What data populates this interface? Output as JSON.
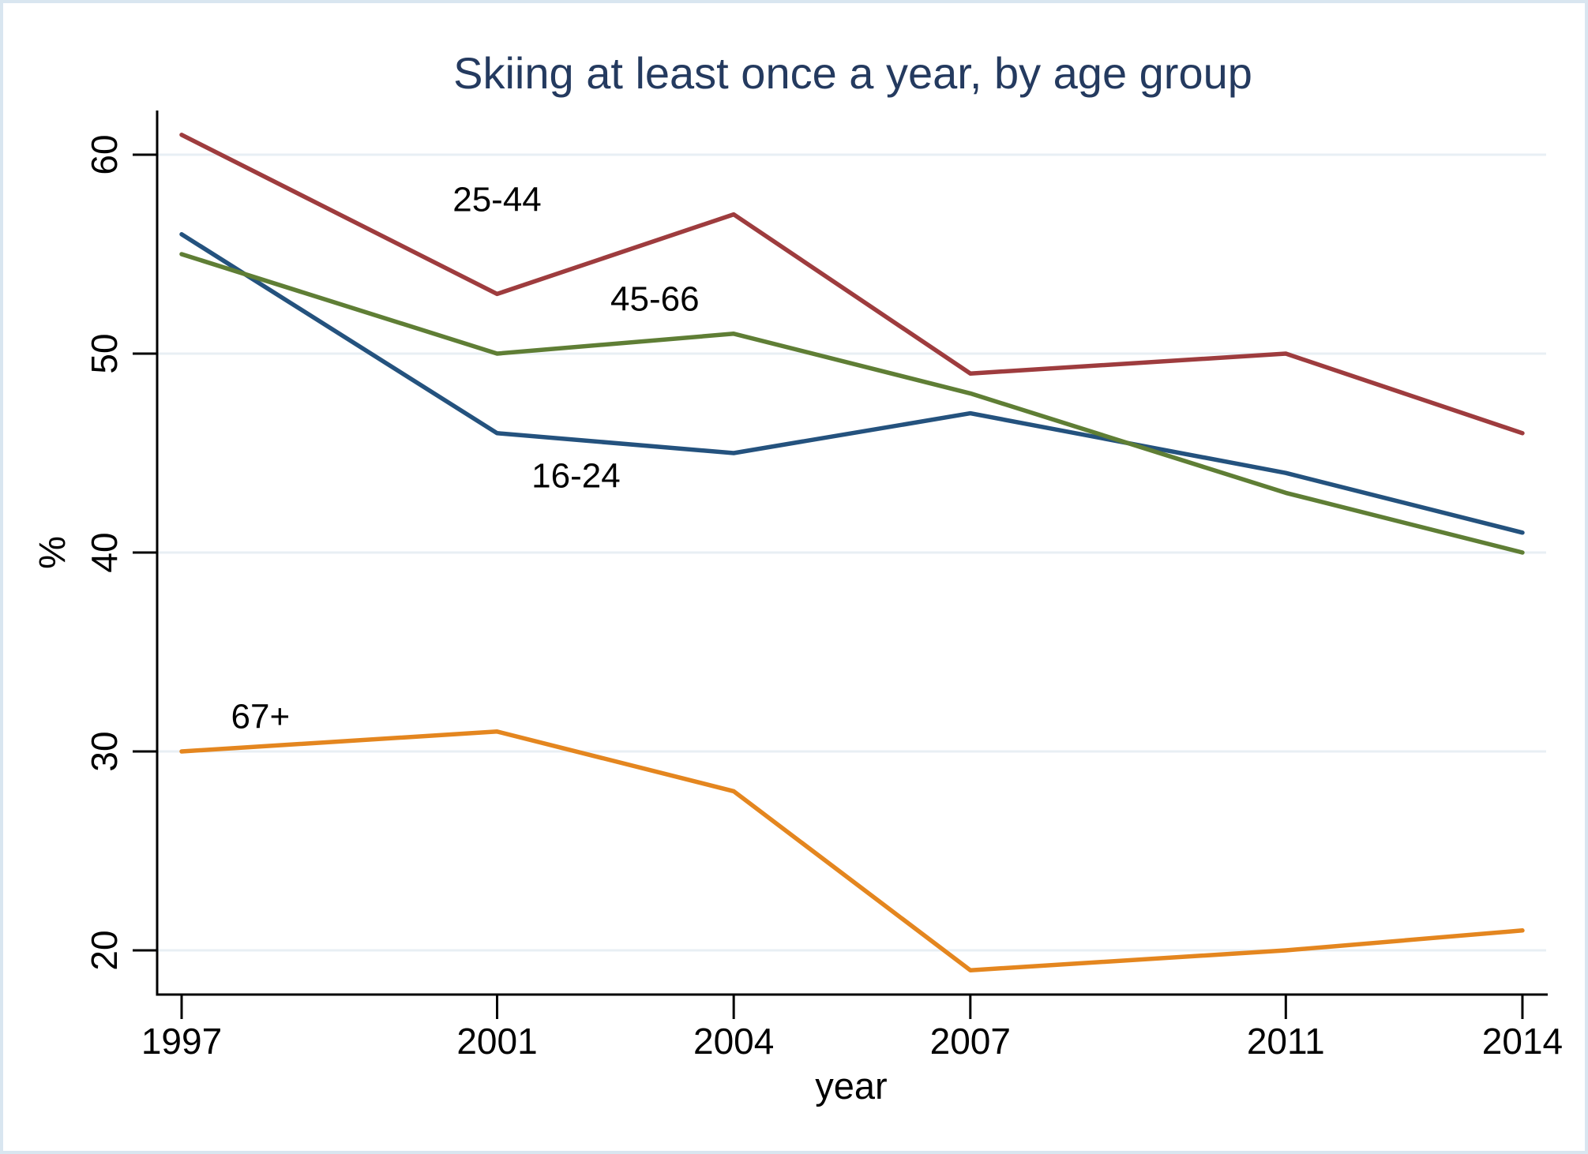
{
  "frame": {
    "background": "#ffffff",
    "border_color": "#d9e6f0"
  },
  "chart_data": {
    "type": "line",
    "title": "Skiing at least once a year, by age group",
    "title_color": "#243a5f",
    "xlabel": "year",
    "ylabel": "%",
    "x": [
      1997,
      2001,
      2004,
      2007,
      2011,
      2014
    ],
    "x_tick_labels": [
      "1997",
      "2001",
      "2004",
      "2007",
      "2011",
      "2014"
    ],
    "y_ticks": [
      20,
      30,
      40,
      50,
      60
    ],
    "y_tick_labels": [
      "20",
      "30",
      "40",
      "50",
      "60"
    ],
    "ylim": [
      17.8,
      62.2
    ],
    "xlim": [
      1996.7,
      2014.35
    ],
    "grid": true,
    "gridline_color": "#e8eff4",
    "axis_color": "#000000",
    "tick_label_color": "#000000",
    "legend_position": "inline-labels",
    "series": [
      {
        "name": "16-24",
        "color": "#24527e",
        "values": [
          56,
          46,
          45,
          47,
          44,
          41
        ],
        "label_at": {
          "x": 2002.0,
          "y": 43.9
        }
      },
      {
        "name": "25-44",
        "color": "#9e3c3e",
        "values": [
          61,
          53,
          57,
          49,
          50,
          46
        ],
        "label_at": {
          "x": 2001.0,
          "y": 57.8
        }
      },
      {
        "name": "45-66",
        "color": "#5f7e35",
        "values": [
          55,
          50,
          51,
          48,
          43,
          40
        ],
        "label_at": {
          "x": 2003.0,
          "y": 52.8
        }
      },
      {
        "name": "67+",
        "color": "#e4861f",
        "values": [
          30,
          31,
          28,
          19,
          20,
          21
        ],
        "label_at": {
          "x": 1998.0,
          "y": 31.8
        }
      }
    ]
  }
}
